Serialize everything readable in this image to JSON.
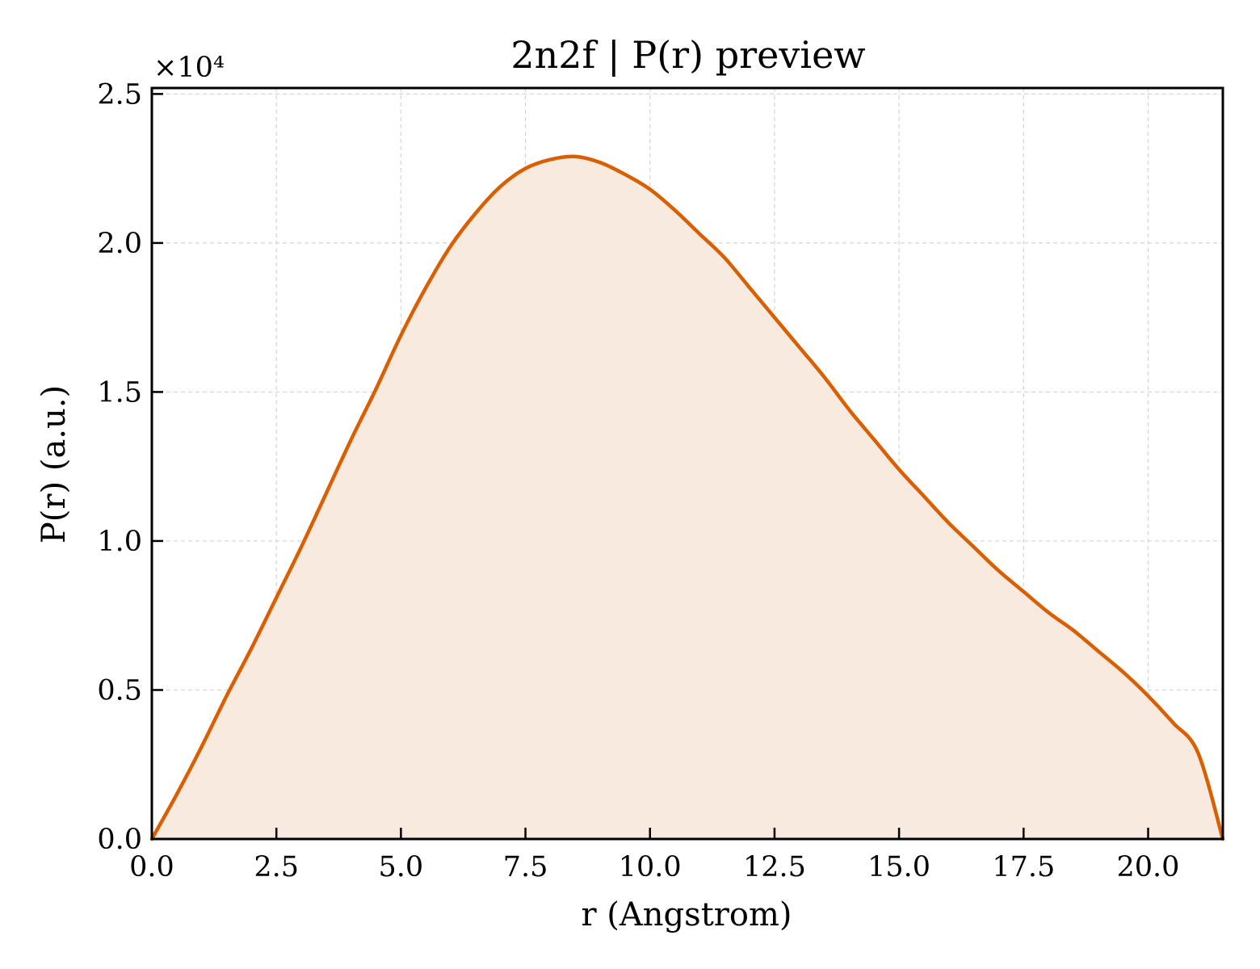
{
  "chart_data": {
    "type": "area",
    "title": "2n2f | P(r) preview",
    "xlabel": "r (Angstrom)",
    "ylabel": "P(r) (a.u.)",
    "y_offset_label": "×10⁴",
    "y_scale_factor": 10000,
    "xlim": [
      0,
      21.5
    ],
    "ylim": [
      0,
      25200
    ],
    "x_ticks": [
      0.0,
      2.5,
      5.0,
      7.5,
      10.0,
      12.5,
      15.0,
      17.5,
      20.0
    ],
    "x_tick_labels": [
      "0.0",
      "2.5",
      "5.0",
      "7.5",
      "10.0",
      "12.5",
      "15.0",
      "17.5",
      "20.0"
    ],
    "y_ticks": [
      0,
      5000,
      10000,
      15000,
      20000,
      25000
    ],
    "y_tick_labels": [
      "0.0",
      "0.5",
      "1.0",
      "1.5",
      "2.0",
      "2.5"
    ],
    "grid": true,
    "colors": {
      "line": "#d95f02",
      "fill": "#f9eadf",
      "grid": "#d4d4d4"
    },
    "series": [
      {
        "x": [
          0,
          0.5,
          1.0,
          1.5,
          2.0,
          2.5,
          3.0,
          3.5,
          4.0,
          4.5,
          5.0,
          5.5,
          6.0,
          6.5,
          7.0,
          7.5,
          8.0,
          8.5,
          9.0,
          9.5,
          10.0,
          10.5,
          11.0,
          11.5,
          12.0,
          12.5,
          13.0,
          13.5,
          14.0,
          14.5,
          15.0,
          15.5,
          16.0,
          16.5,
          17.0,
          17.5,
          18.0,
          18.5,
          19.0,
          19.5,
          20.0,
          20.5,
          21.0,
          21.5
        ],
        "y": [
          0,
          1500,
          3100,
          4800,
          6400,
          8100,
          9800,
          11600,
          13400,
          15100,
          16900,
          18500,
          19900,
          21000,
          21900,
          22500,
          22800,
          22900,
          22700,
          22300,
          21800,
          21100,
          20300,
          19500,
          18500,
          17500,
          16500,
          15500,
          14400,
          13400,
          12400,
          11500,
          10600,
          9800,
          9000,
          8300,
          7600,
          7000,
          6300,
          5600,
          4800,
          3900,
          2900,
          0
        ]
      }
    ]
  }
}
